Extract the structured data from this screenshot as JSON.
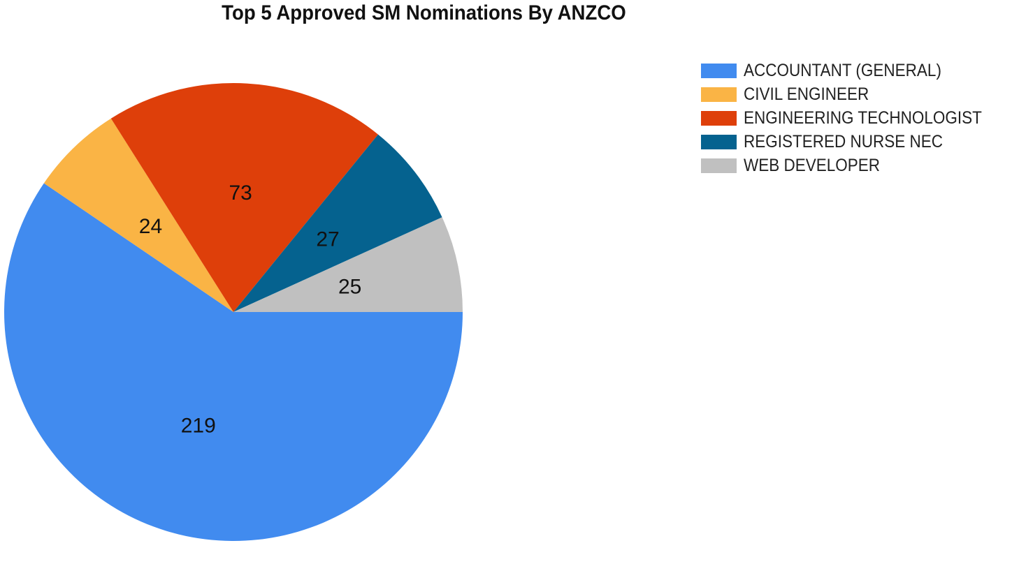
{
  "chart_data": {
    "type": "pie",
    "title": "Top 5 Approved SM Nominations By ANZCO",
    "legend_position": "right",
    "slices": [
      {
        "label": "ACCOUNTANT (GENERAL)",
        "value": 219,
        "color": "#418bef"
      },
      {
        "label": "CIVIL ENGINEER",
        "value": 24,
        "color": "#fab445"
      },
      {
        "label": "ENGINEERING TECHNOLOGIST",
        "value": 73,
        "color": "#de3f0a"
      },
      {
        "label": "REGISTERED NURSE NEC",
        "value": 27,
        "color": "#05628f"
      },
      {
        "label": "WEB DEVELOPER",
        "value": 25,
        "color": "#c0c0c0"
      }
    ]
  }
}
